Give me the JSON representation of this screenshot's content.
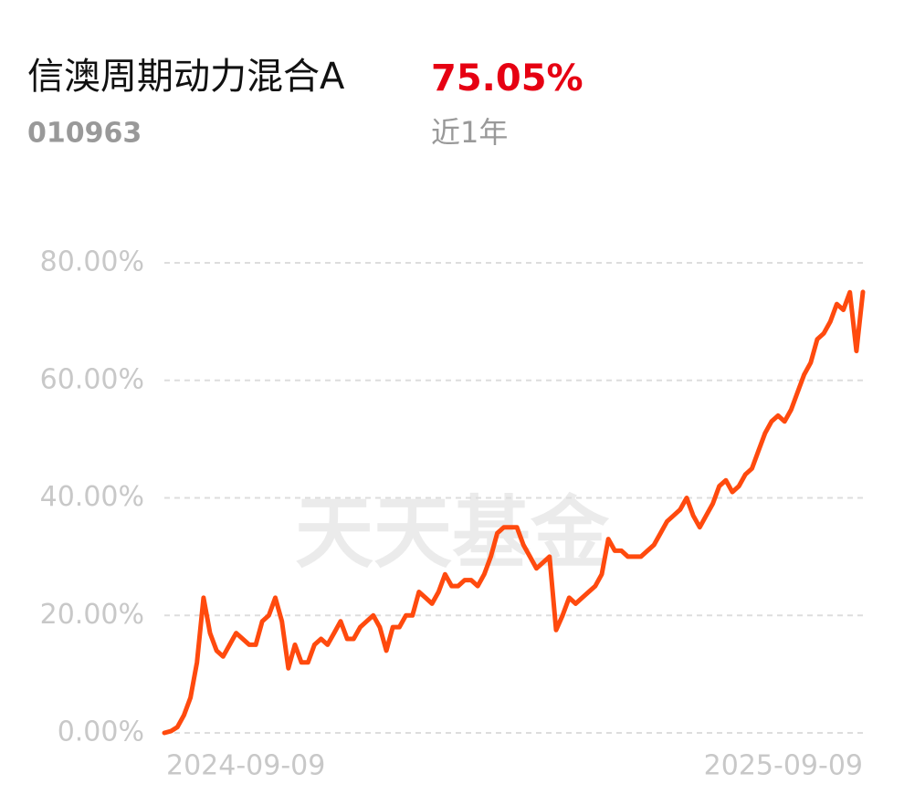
{
  "header": {
    "fund_name": "信澳周期动力混合A",
    "return": "75.05%",
    "code": "010963",
    "period": "近1年"
  },
  "chart_data": {
    "type": "line",
    "watermark": "天天基金",
    "categories": [
      "2024-09-09",
      null,
      null,
      null,
      null,
      null,
      null,
      null,
      null,
      null,
      null,
      null,
      null,
      null,
      null,
      null,
      null,
      null,
      null,
      null,
      null,
      null,
      null,
      null,
      null,
      null,
      null,
      null,
      null,
      null,
      null,
      null,
      null,
      null,
      null,
      null,
      null,
      null,
      null,
      null,
      null,
      null,
      null,
      null,
      null,
      null,
      null,
      null,
      null,
      null,
      null,
      null,
      null,
      null,
      null,
      null,
      null,
      null,
      null,
      null,
      null,
      null,
      null,
      null,
      null,
      null,
      null,
      null,
      null,
      null,
      null,
      null,
      null,
      null,
      null,
      null,
      null,
      null,
      null,
      null,
      null,
      null,
      null,
      null,
      null,
      null,
      null,
      null,
      null,
      null,
      null,
      null,
      null,
      null,
      null,
      null,
      null,
      null,
      null,
      null,
      null,
      null,
      null,
      null,
      null,
      null,
      null,
      "2025-09-09"
    ],
    "series": [
      {
        "name": "信澳周期动力混合A",
        "color": "#ff4a0e",
        "values": [
          0,
          0.3,
          1,
          3,
          6,
          12,
          23,
          17,
          14,
          13,
          15,
          17,
          16,
          15,
          15,
          19,
          20,
          23,
          19,
          11,
          15,
          12,
          12,
          15,
          16,
          15,
          17,
          19,
          16,
          16,
          18,
          19,
          20,
          18,
          14,
          18,
          18,
          20,
          20,
          24,
          23,
          22,
          24,
          27,
          25,
          25,
          26,
          26,
          25,
          27,
          30,
          34,
          35,
          35,
          35,
          32,
          30,
          28,
          29,
          30,
          17.5,
          20,
          23,
          22,
          23,
          24,
          25,
          27,
          33,
          31,
          31,
          30,
          30,
          30,
          31,
          32,
          34,
          36,
          37,
          38,
          40,
          37,
          35,
          37,
          39,
          42,
          43,
          41,
          42,
          44,
          45,
          48,
          51,
          53,
          54,
          53,
          55,
          58,
          61,
          63,
          67,
          68,
          70,
          73,
          72,
          75,
          65,
          75.05
        ]
      }
    ],
    "ylim": [
      0,
      80
    ],
    "yticks": [
      {
        "value": 0,
        "label": "0.00%"
      },
      {
        "value": 20,
        "label": "20.00%"
      },
      {
        "value": 40,
        "label": "40.00%"
      },
      {
        "value": 60,
        "label": "60.00%"
      },
      {
        "value": 80,
        "label": "80.00%"
      }
    ],
    "grid": true
  }
}
